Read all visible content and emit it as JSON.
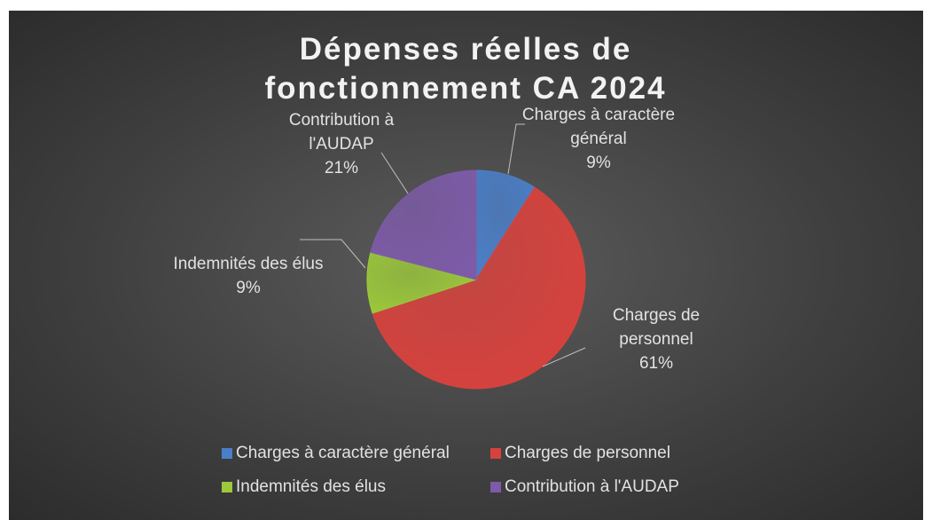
{
  "chart_data": {
    "type": "pie",
    "title": "Dépenses réelles de fonctionnement CA 2024",
    "categories": [
      "Charges à caractère général",
      "Charges de personnel",
      "Indemnités des élus",
      "Contribution à l'AUDAP"
    ],
    "values": [
      9,
      61,
      9,
      21
    ],
    "value_labels": [
      "9%",
      "61%",
      "9%",
      "21%"
    ],
    "colors": [
      "#4a7fc9",
      "#d8423d",
      "#9cc83b",
      "#7d5ba8"
    ],
    "legend": "bottom"
  }
}
